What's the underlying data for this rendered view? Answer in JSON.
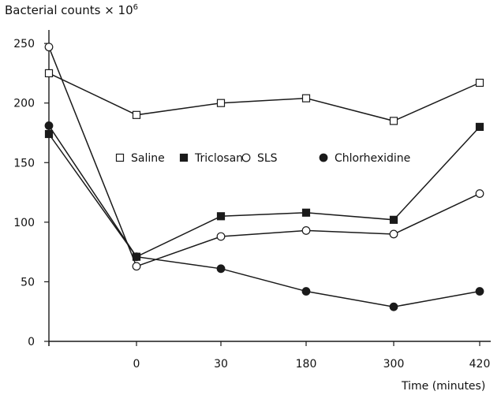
{
  "chart_data": {
    "type": "line",
    "title": "",
    "ylabel": "Bacterial counts × 10",
    "ylabel_exponent": "6",
    "xlabel": "Time (minutes)",
    "categories": [
      "",
      "0",
      "30",
      "180",
      "300",
      "420"
    ],
    "ylim": [
      0,
      260
    ],
    "yticks": [
      0,
      50,
      100,
      150,
      200,
      250
    ],
    "grid": false,
    "legend_position": "inside-middle",
    "series": [
      {
        "name": "Saline",
        "marker": "open-square",
        "values": [
          225,
          190,
          200,
          204,
          185,
          217
        ]
      },
      {
        "name": "Triclosan",
        "marker": "filled-square",
        "values": [
          174,
          71,
          105,
          108,
          102,
          180
        ]
      },
      {
        "name": "SLS",
        "marker": "open-circle",
        "values": [
          247,
          63,
          88,
          93,
          90,
          124
        ]
      },
      {
        "name": "Chlorhexidine",
        "marker": "filled-circle",
        "values": [
          181,
          71,
          61,
          42,
          29,
          42
        ]
      }
    ],
    "colors": {
      "line": "#1a1a1a",
      "marker_fill": "#1a1a1a",
      "open_fill": "#ffffff"
    }
  }
}
